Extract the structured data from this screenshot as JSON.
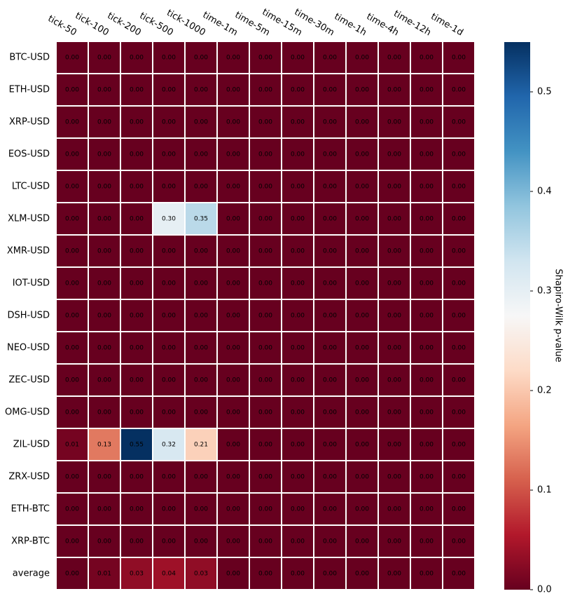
{
  "chart_data": {
    "type": "heatmap",
    "colorbar_label": "Shapiro-Wilk p-value",
    "x_categories": [
      "tick-50",
      "tick-100",
      "tick-200",
      "tick-500",
      "tick-1000",
      "time-1m",
      "time-5m",
      "time-15m",
      "time-30m",
      "time-1h",
      "time-4h",
      "time-12h",
      "time-1d"
    ],
    "y_categories": [
      "BTC-USD",
      "ETH-USD",
      "XRP-USD",
      "EOS-USD",
      "LTC-USD",
      "XLM-USD",
      "XMR-USD",
      "IOT-USD",
      "DSH-USD",
      "NEO-USD",
      "ZEC-USD",
      "OMG-USD",
      "ZIL-USD",
      "ZRX-USD",
      "ETH-BTC",
      "XRP-BTC",
      "average"
    ],
    "values": [
      [
        0,
        0,
        0,
        0,
        0,
        0,
        0,
        0,
        0,
        0,
        0,
        0,
        0
      ],
      [
        0,
        0,
        0,
        0,
        0,
        0,
        0,
        0,
        0,
        0,
        0,
        0,
        0
      ],
      [
        0,
        0,
        0,
        0,
        0,
        0,
        0,
        0,
        0,
        0,
        0,
        0,
        0
      ],
      [
        0,
        0,
        0,
        0,
        0,
        0,
        0,
        0,
        0,
        0,
        0,
        0,
        0
      ],
      [
        0,
        0,
        0,
        0,
        0,
        0,
        0,
        0,
        0,
        0,
        0,
        0,
        0
      ],
      [
        0,
        0,
        0,
        0.3,
        0.35,
        0,
        0,
        0,
        0,
        0,
        0,
        0,
        0
      ],
      [
        0,
        0,
        0,
        0,
        0,
        0,
        0,
        0,
        0,
        0,
        0,
        0,
        0
      ],
      [
        0,
        0,
        0,
        0,
        0,
        0,
        0,
        0,
        0,
        0,
        0,
        0,
        0
      ],
      [
        0,
        0,
        0,
        0,
        0,
        0,
        0,
        0,
        0,
        0,
        0,
        0,
        0
      ],
      [
        0,
        0,
        0,
        0,
        0,
        0,
        0,
        0,
        0,
        0,
        0,
        0,
        0
      ],
      [
        0,
        0,
        0,
        0,
        0,
        0,
        0,
        0,
        0,
        0,
        0,
        0,
        0
      ],
      [
        0,
        0,
        0,
        0,
        0,
        0,
        0,
        0,
        0,
        0,
        0,
        0,
        0
      ],
      [
        0.01,
        0.13,
        0.55,
        0.32,
        0.21,
        0,
        0,
        0,
        0,
        0,
        0,
        0,
        0
      ],
      [
        0,
        0,
        0,
        0,
        0,
        0,
        0,
        0,
        0,
        0,
        0,
        0,
        0
      ],
      [
        0,
        0,
        0,
        0,
        0,
        0,
        0,
        0,
        0,
        0,
        0,
        0,
        0
      ],
      [
        0,
        0,
        0,
        0,
        0,
        0,
        0,
        0,
        0,
        0,
        0,
        0,
        0
      ],
      [
        0,
        0.01,
        0.03,
        0.04,
        0.03,
        0,
        0,
        0,
        0,
        0,
        0,
        0,
        0
      ]
    ],
    "value_labels": [
      [
        "0.00",
        "0.00",
        "0.00",
        "0.00",
        "0.00",
        "0.00",
        "0.00",
        "0.00",
        "0.00",
        "0.00",
        "0.00",
        "0.00",
        "0.00"
      ],
      [
        "0.00",
        "0.00",
        "0.00",
        "0.00",
        "0.00",
        "0.00",
        "0.00",
        "0.00",
        "0.00",
        "0.00",
        "0.00",
        "0.00",
        "0.00"
      ],
      [
        "0.00",
        "0.00",
        "0.00",
        "0.00",
        "0.00",
        "0.00",
        "0.00",
        "0.00",
        "0.00",
        "0.00",
        "0.00",
        "0.00",
        "0.00"
      ],
      [
        "0.00",
        "0.00",
        "0.00",
        "0.00",
        "0.00",
        "0.00",
        "0.00",
        "0.00",
        "0.00",
        "0.00",
        "0.00",
        "0.00",
        "0.00"
      ],
      [
        "0.00",
        "0.00",
        "0.00",
        "0.00",
        "0.00",
        "0.00",
        "0.00",
        "0.00",
        "0.00",
        "0.00",
        "0.00",
        "0.00",
        "0.00"
      ],
      [
        "0.00",
        "0.00",
        "0.00",
        "0.30",
        "0.35",
        "0.00",
        "0.00",
        "0.00",
        "0.00",
        "0.00",
        "0.00",
        "0.00",
        "0.00"
      ],
      [
        "0.00",
        "0.00",
        "0.00",
        "0.00",
        "0.00",
        "0.00",
        "0.00",
        "0.00",
        "0.00",
        "0.00",
        "0.00",
        "0.00",
        "0.00"
      ],
      [
        "0.00",
        "0.00",
        "0.00",
        "0.00",
        "0.00",
        "0.00",
        "0.00",
        "0.00",
        "0.00",
        "0.00",
        "0.00",
        "0.00",
        "0.00"
      ],
      [
        "0.00",
        "0.00",
        "0.00",
        "0.00",
        "0.00",
        "0.00",
        "0.00",
        "0.00",
        "0.00",
        "0.00",
        "0.00",
        "0.00",
        "0.00"
      ],
      [
        "0.00",
        "0.00",
        "0.00",
        "0.00",
        "0.00",
        "0.00",
        "0.00",
        "0.00",
        "0.00",
        "0.00",
        "0.00",
        "0.00",
        "0.00"
      ],
      [
        "0.00",
        "0.00",
        "0.00",
        "0.00",
        "0.00",
        "0.00",
        "0.00",
        "0.00",
        "0.00",
        "0.00",
        "0.00",
        "0.00",
        "0.00"
      ],
      [
        "0.00",
        "0.00",
        "0.00",
        "0.00",
        "0.00",
        "0.00",
        "0.00",
        "0.00",
        "0.00",
        "0.00",
        "0.00",
        "0.00",
        "0.00"
      ],
      [
        "0.01",
        "0.13",
        "0.55",
        "0.32",
        "0.21",
        "0.00",
        "0.00",
        "0.00",
        "0.00",
        "0.00",
        "0.00",
        "0.00",
        "0.00"
      ],
      [
        "0.00",
        "0.00",
        "0.00",
        "0.00",
        "0.00",
        "0.00",
        "0.00",
        "0.00",
        "0.00",
        "0.00",
        "0.00",
        "0.00",
        "0.00"
      ],
      [
        "0.00",
        "0.00",
        "0.00",
        "0.00",
        "0.00",
        "0.00",
        "0.00",
        "0.00",
        "0.00",
        "0.00",
        "0.00",
        "0.00",
        "0.00"
      ],
      [
        "0.00",
        "0.00",
        "0.00",
        "0.00",
        "0.00",
        "0.00",
        "0.00",
        "0.00",
        "0.00",
        "0.00",
        "0.00",
        "0.00",
        "0.00"
      ],
      [
        "0.00",
        "0.01",
        "0.03",
        "0.04",
        "0.03",
        "0.00",
        "0.00",
        "0.00",
        "0.00",
        "0.00",
        "0.00",
        "0.00",
        "0.00"
      ]
    ],
    "clim": [
      0,
      0.55
    ],
    "cticks": [
      {
        "value": 0,
        "label": "0.0"
      },
      0.1,
      0.2,
      0.3,
      0.4,
      0.5
    ],
    "colormap": [
      "#67001f",
      "#b2182b",
      "#d6604d",
      "#f4a582",
      "#fddbc7",
      "#f7f7f7",
      "#d1e5f0",
      "#92c5de",
      "#4393c3",
      "#2166ac",
      "#053061"
    ]
  }
}
